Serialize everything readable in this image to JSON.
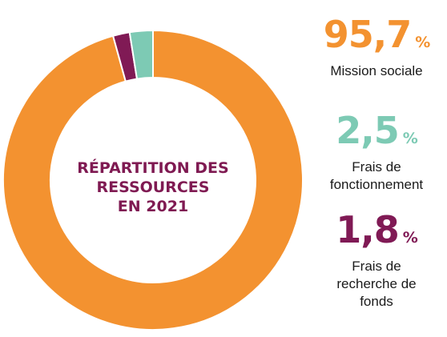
{
  "chart_data": {
    "type": "pie",
    "title_lines": [
      "RÉPARTITION DES",
      "RESSOURCES",
      "EN 2021"
    ],
    "categories": [
      "Mission sociale",
      "Frais de fonctionnement",
      "Frais de recherche de fonds"
    ],
    "values": [
      95.7,
      2.5,
      1.8
    ],
    "display_values": [
      "95,7",
      "2,5",
      "1,8"
    ],
    "unit": "%",
    "colors": [
      "#f39230",
      "#7dcab4",
      "#801a55"
    ],
    "label_lines": [
      [
        "Mission sociale"
      ],
      [
        "Frais de",
        "fonctionnement"
      ],
      [
        "Frais de",
        "recherche de",
        "fonds"
      ]
    ],
    "legend_position": "right"
  }
}
